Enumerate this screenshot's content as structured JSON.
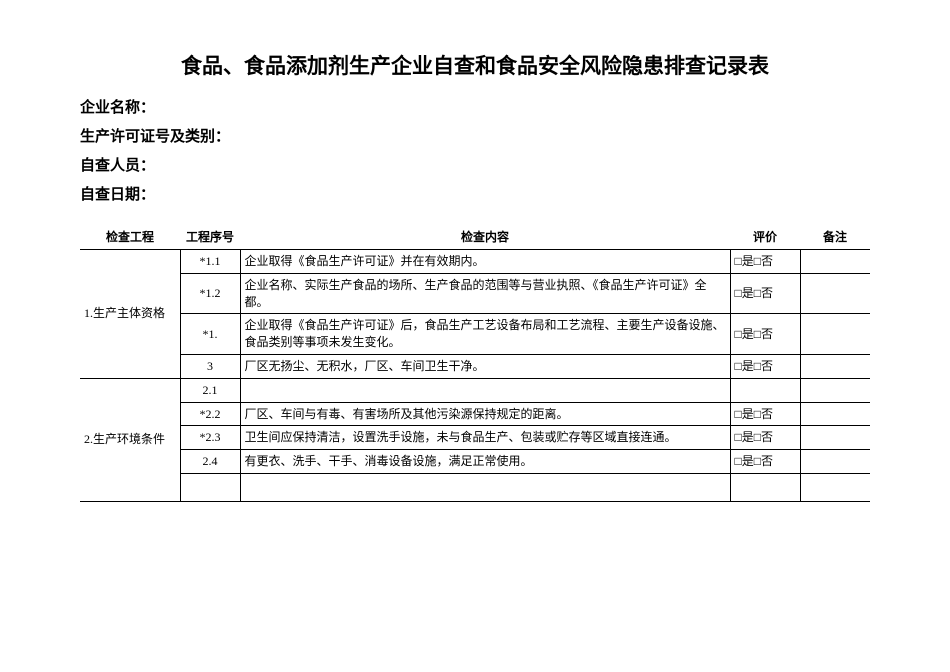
{
  "title": "食品、食品添加剂生产企业自查和食品安全风险隐患排查记录表",
  "fields": {
    "company_name_label": "企业名称：",
    "license_label": "生产许可证号及类别：",
    "inspector_label": "自查人员：",
    "date_label": "自查日期："
  },
  "table": {
    "headers": {
      "category": "检查工程",
      "seqno": "工程序号",
      "content": "检查内容",
      "eval": "评价",
      "remark": "备注"
    },
    "eval_text": "□是□否",
    "sections": [
      {
        "category": "1.生产主体资格",
        "rows": [
          {
            "seq": "*1.1",
            "content": "企业取得《食品生产许可证》并在有效期内。"
          },
          {
            "seq": "*1.2",
            "content": "企业名称、实际生产食品的场所、生产食品的范围等与营业执照、《食品生产许可证》全都。"
          },
          {
            "seq": "*1.",
            "content": "企业取得《食品生产许可证》后，食品生产工艺设备布局和工艺流程、主要生产设备设施、食品类别等事项未发生变化。"
          },
          {
            "seq": "3",
            "content": "厂区无扬尘、无积水，厂区、车间卫生干净。"
          }
        ]
      },
      {
        "category": "2.生产环境条件",
        "rows": [
          {
            "seq": "2.1",
            "content": ""
          },
          {
            "seq": "*2.2",
            "content": "厂区、车间与有毒、有害场所及其他污染源保持规定的距离。"
          },
          {
            "seq": "*2.3",
            "content": "卫生间应保持清洁，设置洗手设施，未与食品生产、包装或贮存等区域直接连通。"
          },
          {
            "seq": "2.4",
            "content": "有更衣、洗手、干手、消毒设备设施，满足正常使用。"
          }
        ]
      }
    ]
  },
  "layout": {
    "col_widths": {
      "category": "100px",
      "seqno": "60px",
      "eval": "70px",
      "remark": "70px"
    },
    "colors": {
      "background": "#ffffff",
      "text": "#000000",
      "border": "#000000"
    },
    "font_sizes": {
      "title": 21,
      "header_field": 15,
      "table": 12
    }
  }
}
